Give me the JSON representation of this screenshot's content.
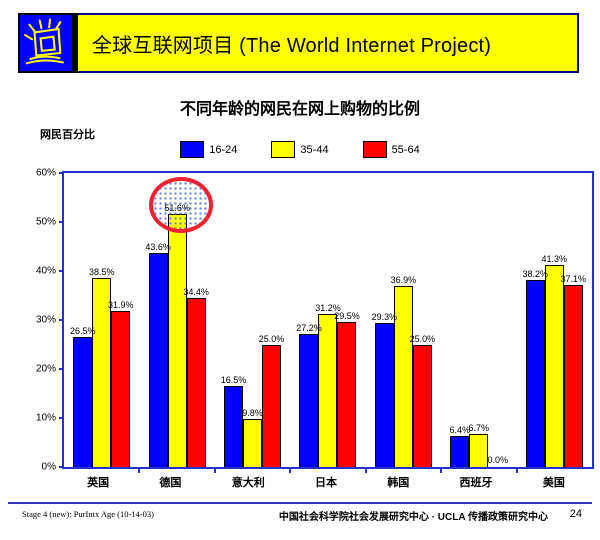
{
  "header": {
    "title": "全球互联网项目 (The World Internet Project)",
    "logo_icon": "shining-monitor-icon",
    "banner_bg": "#FFFF00",
    "banner_border": "#000080"
  },
  "chart_data": {
    "type": "bar",
    "title": "不同年龄的网民在网上购物的比例",
    "ylabel": "网民百分比",
    "xlabel": "",
    "categories": [
      "英国",
      "德国",
      "意大利",
      "日本",
      "韩国",
      "西班牙",
      "美国"
    ],
    "series": [
      {
        "name": "16-24",
        "color": "#0000FF",
        "values": [
          26.5,
          43.6,
          16.5,
          27.2,
          29.3,
          6.4,
          38.2
        ]
      },
      {
        "name": "35-44",
        "color": "#FFFF00",
        "values": [
          38.5,
          51.6,
          9.8,
          31.2,
          36.9,
          6.7,
          41.3
        ]
      },
      {
        "name": "55-64",
        "color": "#FF0000",
        "values": [
          31.9,
          34.4,
          25.0,
          29.5,
          25.0,
          0.0,
          37.1
        ]
      }
    ],
    "ylim": [
      0,
      60
    ],
    "ytick_step": 10,
    "ytick_suffix": "%",
    "data_label_suffix": "%",
    "legend_position": "top",
    "grid": false,
    "axis_color": "#2233CC",
    "annotation": {
      "type": "circle-highlight",
      "target_category": "德国",
      "target_series": "35-44",
      "highlighted_value": "51.6%",
      "circle_color": "#EE2233"
    }
  },
  "footer": {
    "left": "Stage 4 (new): PurIntx Age (10-14-03)",
    "center": "中国社会科学院社会发展研究中心 · UCLA 传播政策研究中心",
    "page_number": "24"
  }
}
